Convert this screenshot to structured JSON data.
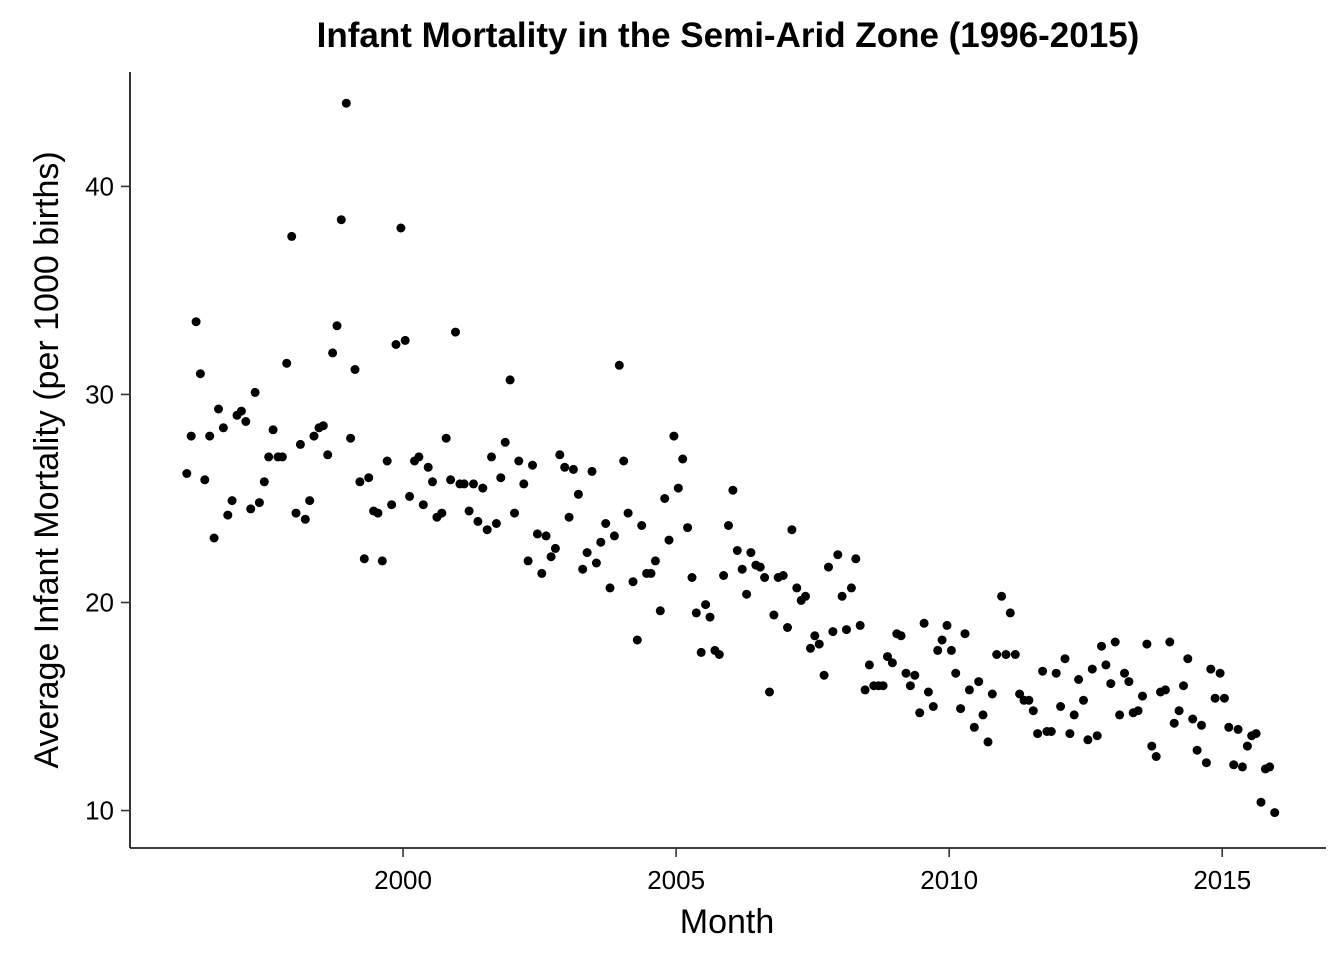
{
  "chart_data": {
    "type": "scatter",
    "title": "Infant Mortality in the Semi-Arid Zone (1996-2015)",
    "xlabel": "Month",
    "ylabel": "Average Infant Mortality (per 1000 births)",
    "xlim": [
      1995,
      2016.9
    ],
    "ylim": [
      8.2,
      45.5
    ],
    "xticks": [
      2000,
      2005,
      2010,
      2015
    ],
    "yticks": [
      10,
      20,
      30,
      40
    ],
    "xtick_labels": [
      "2000",
      "2005",
      "2010",
      "2015"
    ],
    "ytick_labels": [
      "10",
      "20",
      "30",
      "40"
    ],
    "grid": false,
    "legend": "none",
    "point_color": "#000000",
    "series": [
      {
        "x": [
          1996.04,
          1996.12,
          1996.21,
          1996.29,
          1996.37,
          1996.46,
          1996.54,
          1996.62,
          1996.71,
          1996.79,
          1996.87,
          1996.96,
          1997.04,
          1997.12,
          1997.21,
          1997.29,
          1997.37,
          1997.46,
          1997.54,
          1997.62,
          1997.71,
          1997.79,
          1997.87,
          1997.96,
          1998.04,
          1998.12,
          1998.21,
          1998.29,
          1998.37,
          1998.46,
          1998.54,
          1998.62,
          1998.71,
          1998.79,
          1998.87,
          1998.96,
          1999.04,
          1999.12,
          1999.21,
          1999.29,
          1999.37,
          1999.46,
          1999.54,
          1999.62,
          1999.71,
          1999.79,
          1999.87,
          1999.96,
          2000.04,
          2000.12,
          2000.21,
          2000.29,
          2000.37,
          2000.46,
          2000.54,
          2000.62,
          2000.71,
          2000.79,
          2000.87,
          2000.96,
          2001.04,
          2001.12,
          2001.21,
          2001.29,
          2001.37,
          2001.46,
          2001.54,
          2001.62,
          2001.71,
          2001.79,
          2001.87,
          2001.96,
          2002.04,
          2002.12,
          2002.21,
          2002.29,
          2002.37,
          2002.46,
          2002.54,
          2002.62,
          2002.71,
          2002.79,
          2002.87,
          2002.96,
          2003.04,
          2003.12,
          2003.21,
          2003.29,
          2003.37,
          2003.46,
          2003.54,
          2003.62,
          2003.71,
          2003.79,
          2003.87,
          2003.96,
          2004.04,
          2004.12,
          2004.21,
          2004.29,
          2004.37,
          2004.46,
          2004.54,
          2004.62,
          2004.71,
          2004.79,
          2004.87,
          2004.96,
          2005.04,
          2005.12,
          2005.21,
          2005.29,
          2005.37,
          2005.46,
          2005.54,
          2005.62,
          2005.71,
          2005.79,
          2005.87,
          2005.96,
          2006.04,
          2006.12,
          2006.21,
          2006.29,
          2006.37,
          2006.46,
          2006.54,
          2006.62,
          2006.71,
          2006.79,
          2006.87,
          2006.96,
          2007.04,
          2007.12,
          2007.21,
          2007.29,
          2007.37,
          2007.46,
          2007.54,
          2007.62,
          2007.71,
          2007.79,
          2007.87,
          2007.96,
          2008.04,
          2008.12,
          2008.21,
          2008.29,
          2008.37,
          2008.46,
          2008.54,
          2008.62,
          2008.71,
          2008.79,
          2008.87,
          2008.96,
          2009.04,
          2009.12,
          2009.21,
          2009.29,
          2009.37,
          2009.46,
          2009.54,
          2009.62,
          2009.71,
          2009.79,
          2009.87,
          2009.96,
          2010.04,
          2010.12,
          2010.21,
          2010.29,
          2010.37,
          2010.46,
          2010.54,
          2010.62,
          2010.71,
          2010.79,
          2010.87,
          2010.96,
          2011.04,
          2011.12,
          2011.21,
          2011.29,
          2011.37,
          2011.46,
          2011.54,
          2011.62,
          2011.71,
          2011.79,
          2011.87,
          2011.96,
          2012.04,
          2012.12,
          2012.21,
          2012.29,
          2012.37,
          2012.46,
          2012.54,
          2012.62,
          2012.71,
          2012.79,
          2012.87,
          2012.96,
          2013.04,
          2013.12,
          2013.21,
          2013.29,
          2013.37,
          2013.46,
          2013.54,
          2013.62,
          2013.71,
          2013.79,
          2013.87,
          2013.96,
          2014.04,
          2014.12,
          2014.21,
          2014.29,
          2014.37,
          2014.46,
          2014.54,
          2014.62,
          2014.71,
          2014.79,
          2014.87,
          2014.96,
          2015.04,
          2015.12,
          2015.21,
          2015.29,
          2015.37,
          2015.46,
          2015.54,
          2015.62,
          2015.71,
          2015.79,
          2015.87,
          2015.96
        ],
        "y": [
          26.2,
          28.0,
          33.5,
          31.0,
          25.9,
          28.0,
          23.1,
          29.3,
          28.4,
          24.2,
          24.9,
          29.0,
          29.2,
          28.7,
          24.5,
          30.1,
          24.8,
          25.8,
          27.0,
          28.3,
          27.0,
          27.0,
          31.5,
          37.6,
          24.3,
          27.6,
          24.0,
          24.9,
          28.0,
          28.4,
          28.5,
          27.1,
          32.0,
          33.3,
          38.4,
          44.0,
          27.9,
          31.2,
          25.8,
          22.1,
          26.0,
          24.4,
          24.3,
          22.0,
          26.8,
          24.7,
          32.4,
          38.0,
          32.6,
          25.1,
          26.8,
          27.0,
          24.7,
          26.5,
          25.8,
          24.1,
          24.3,
          27.9,
          25.9,
          33.0,
          25.7,
          25.7,
          24.4,
          25.7,
          23.9,
          25.5,
          23.5,
          27.0,
          23.8,
          26.0,
          27.7,
          30.7,
          24.3,
          26.8,
          25.7,
          22.0,
          26.6,
          23.3,
          21.4,
          23.2,
          22.2,
          22.6,
          27.1,
          26.5,
          24.1,
          26.4,
          25.2,
          21.6,
          22.4,
          26.3,
          21.9,
          22.9,
          23.8,
          20.7,
          23.2,
          31.4,
          26.8,
          24.3,
          21.0,
          18.2,
          23.7,
          21.4,
          21.4,
          22.0,
          19.6,
          25.0,
          23.0,
          28.0,
          25.5,
          26.9,
          23.6,
          21.2,
          19.5,
          17.6,
          19.9,
          19.3,
          17.7,
          17.5,
          21.3,
          23.7,
          25.4,
          22.5,
          21.6,
          20.4,
          22.4,
          21.8,
          21.7,
          21.2,
          15.7,
          19.4,
          21.2,
          21.3,
          18.8,
          23.5,
          20.7,
          20.1,
          20.3,
          17.8,
          18.4,
          18.0,
          16.5,
          21.7,
          18.6,
          22.3,
          20.3,
          18.7,
          20.7,
          22.1,
          18.9,
          15.8,
          17.0,
          16.0,
          16.0,
          16.0,
          17.4,
          17.1,
          18.5,
          18.4,
          16.6,
          16.0,
          16.5,
          14.7,
          19.0,
          15.7,
          15.0,
          17.7,
          18.2,
          18.9,
          17.7,
          16.6,
          14.9,
          18.5,
          15.8,
          14.0,
          16.2,
          14.6,
          13.3,
          15.6,
          17.5,
          20.3,
          17.5,
          19.5,
          17.5,
          15.6,
          15.3,
          15.3,
          14.8,
          13.7,
          16.7,
          13.8,
          13.8,
          16.6,
          15.0,
          17.3,
          13.7,
          14.6,
          16.3,
          15.3,
          13.4,
          16.8,
          13.6,
          17.9,
          17.0,
          16.1,
          18.1,
          14.6,
          16.6,
          16.2,
          14.7,
          14.8,
          15.5,
          18.0,
          13.1,
          12.6,
          15.7,
          15.8,
          18.1,
          14.2,
          14.8,
          16.0,
          17.3,
          14.4,
          12.9,
          14.1,
          12.3,
          16.8,
          15.4,
          16.6,
          15.4,
          14.0,
          12.2,
          13.9,
          12.1,
          13.1,
          13.6,
          13.7,
          10.4,
          12.0,
          12.1,
          9.9
        ]
      }
    ]
  }
}
